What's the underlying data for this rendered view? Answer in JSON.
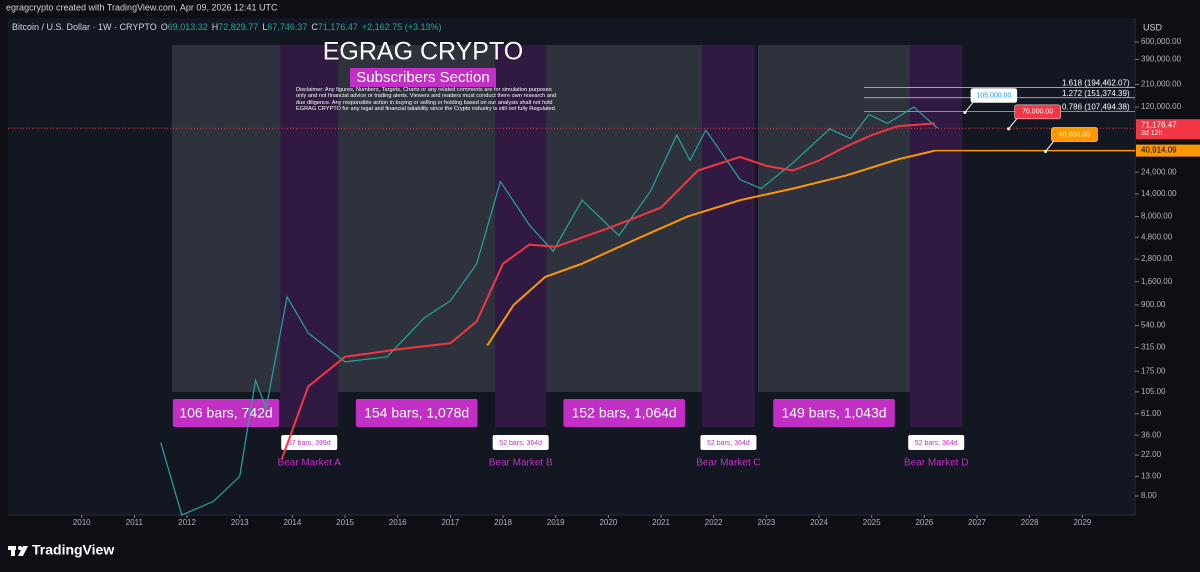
{
  "header": {
    "credit": "egragcrypto created with TradingView.com, Apr 09, 2026 12:41 UTC",
    "symbol": "Bitcoin / U.S. Dollar · 1W · CRYPTO",
    "ohlc": [
      {
        "key": "O",
        "value": "69,013.32"
      },
      {
        "key": "H",
        "value": "72,829.77"
      },
      {
        "key": "L",
        "value": "67,746.37"
      },
      {
        "key": "C",
        "value": "71,176.47"
      }
    ],
    "change": "+2,162.75 (+3.13%)",
    "currency": "USD"
  },
  "footer": {
    "brand": "TradingView"
  },
  "chart_data": {
    "type": "line",
    "title": "EGRAG CRYPTO",
    "subtitle": "Subscribers Section",
    "disclaimer": "Disclaimer: Any figures, Numbers, Targets, Charts or any related comments are for simulation purposes only and not financial advice or trading alerts. Viewers and readers must conduct there own research and due diligence. Any responsible action in buying or selling or holding based on our analysis shall not hold EGRAG CRYPTO for any legal and financial laliability since the Crypto industry is still not fully Regulated.",
    "log_scale": true,
    "xlim": [
      2008.6,
      2030
    ],
    "xticks": [
      2010,
      2011,
      2012,
      2013,
      2014,
      2015,
      2016,
      2017,
      2018,
      2019,
      2020,
      2021,
      2022,
      2023,
      2024,
      2025,
      2026,
      2027,
      2028,
      2029
    ],
    "ylim": [
      5,
      807000
    ],
    "yticks": [
      {
        "value": 600000,
        "label": "600,000.00"
      },
      {
        "value": 390000,
        "label": "390,000.00"
      },
      {
        "value": 210000,
        "label": "210,000.00"
      },
      {
        "value": 120000,
        "label": "120,000.00"
      },
      {
        "value": 24000,
        "label": "24,000.00"
      },
      {
        "value": 14000,
        "label": "14,000.00"
      },
      {
        "value": 8000,
        "label": "8,000.00"
      },
      {
        "value": 4800,
        "label": "4,800.00"
      },
      {
        "value": 2800,
        "label": "2,800.00"
      },
      {
        "value": 1600,
        "label": "1,600.00"
      },
      {
        "value": 900,
        "label": "900.00"
      },
      {
        "value": 540,
        "label": "540.00"
      },
      {
        "value": 315,
        "label": "315.00"
      },
      {
        "value": 175,
        "label": "175.00"
      },
      {
        "value": 105,
        "label": "105.00"
      },
      {
        "value": 61,
        "label": "61.00"
      },
      {
        "value": 36,
        "label": "36.00"
      },
      {
        "value": 22,
        "label": "22.00"
      },
      {
        "value": 13,
        "label": "13.00"
      },
      {
        "value": 8,
        "label": "8.00"
      }
    ],
    "series": [
      {
        "color": "#26a69a",
        "x": [
          2011.5,
          2011.9,
          2012.5,
          2013.0,
          2013.3,
          2013.5,
          2013.9,
          2014.3,
          2015.0,
          2015.8,
          2016.5,
          2017.0,
          2017.5,
          2017.95,
          2018.5,
          2018.95,
          2019.5,
          2020.2,
          2020.8,
          2021.3,
          2021.55,
          2021.85,
          2022.5,
          2022.9,
          2023.5,
          2024.2,
          2024.6,
          2024.95,
          2025.3,
          2025.8,
          2026.25
        ],
        "values": [
          30,
          5,
          7,
          13,
          140,
          70,
          1100,
          450,
          220,
          250,
          650,
          1000,
          2500,
          19000,
          6500,
          3400,
          12000,
          5000,
          15000,
          60000,
          32000,
          68000,
          20000,
          16000,
          30000,
          70000,
          55000,
          100000,
          80000,
          120000,
          71176.47
        ]
      },
      {
        "color": "#f23645",
        "x": [
          2013.8,
          2014.3,
          2015.0,
          2016.0,
          2017.0,
          2017.5,
          2018.0,
          2018.5,
          2019.0,
          2020.0,
          2021.0,
          2021.7,
          2022.5,
          2023.0,
          2023.5,
          2024.0,
          2024.5,
          2025.0,
          2025.5,
          2026.2
        ],
        "values": [
          20,
          120,
          250,
          300,
          350,
          600,
          2500,
          4000,
          3800,
          6000,
          10000,
          25000,
          35000,
          28000,
          25000,
          32000,
          45000,
          60000,
          75000,
          80000
        ]
      },
      {
        "color": "#ff9800",
        "x": [
          2017.7,
          2018.2,
          2018.8,
          2019.5,
          2020.5,
          2021.5,
          2022.5,
          2023.5,
          2024.5,
          2025.5,
          2026.2
        ],
        "values": [
          330,
          900,
          1800,
          2500,
          4500,
          8000,
          12000,
          16000,
          22000,
          33000,
          40914.09
        ]
      }
    ],
    "last_price": {
      "value": 71176.47,
      "label": "71,176.47",
      "countdown": "3d 12h",
      "color": "#f23645"
    },
    "ma_price": {
      "value": 40914.09,
      "label": "40,914.09",
      "color": "#ff9800"
    },
    "levels": [
      {
        "value": 194462.07,
        "label": "1.618 (194,462.07)"
      },
      {
        "value": 151374.39,
        "label": "1.272 (151,374.39)"
      },
      {
        "value": 107494.38,
        "label": "0.786 (107,494.38)"
      }
    ],
    "callouts": [
      {
        "x": 2026.77,
        "value": 105000,
        "label": "105,000.00",
        "color": "#ffffff",
        "text_color": "#2196f3"
      },
      {
        "x": 2027.6,
        "value": 70000,
        "label": "70,000.00",
        "color": "#f23645",
        "text_color": "#ffffff"
      },
      {
        "x": 2028.3,
        "value": 40000,
        "label": "40,000.00",
        "color": "#ff9800",
        "text_color": "#ffffff"
      }
    ],
    "bull_runs": [
      {
        "start": 2011.71,
        "end": 2013.77,
        "label": "106 bars, 742d"
      },
      {
        "start": 2014.87,
        "end": 2017.85,
        "label": "154 bars, 1,078d"
      },
      {
        "start": 2018.82,
        "end": 2021.78,
        "label": "152 bars, 1,064d"
      },
      {
        "start": 2022.84,
        "end": 2025.73,
        "label": "149 bars, 1,043d"
      }
    ],
    "bear_markets": [
      {
        "start": 2013.77,
        "end": 2014.87,
        "duration": "57 bars, 399d",
        "name": "Bear Market A"
      },
      {
        "start": 2017.85,
        "end": 2018.82,
        "duration": "52 bars, 364d",
        "name": "Bear Market B"
      },
      {
        "start": 2021.78,
        "end": 2022.78,
        "duration": "52 bars, 364d",
        "name": "Bear Market C"
      },
      {
        "start": 2025.73,
        "end": 2026.72,
        "duration": "52 bars, 364d",
        "name": "Bear Market D"
      }
    ]
  }
}
